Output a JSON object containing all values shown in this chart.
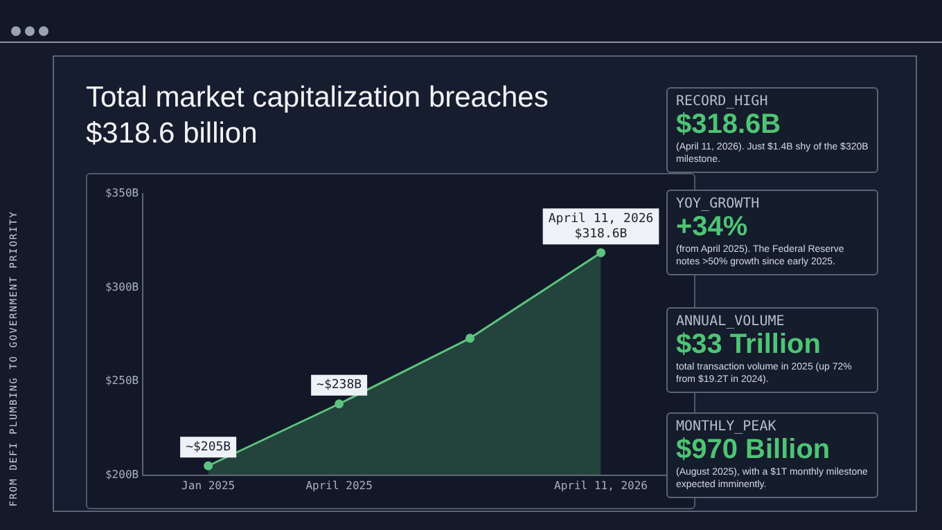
{
  "chart_data": [
    {
      "type": "area",
      "title": "Total market capitalization breaches $318.6 billion",
      "categories": [
        "Jan 2025",
        "April 2025",
        null,
        "April 11, 2026"
      ],
      "values": [
        205,
        238,
        273,
        318.6
      ],
      "value_labels": [
        "~$205B",
        "~$238B",
        null,
        "$318.6B"
      ],
      "color": "#5cc47e",
      "marker": "circle",
      "ylim": [
        200,
        350
      ],
      "yticks": [
        {
          "value": 200,
          "label": "$200B"
        },
        {
          "value": 250,
          "label": "$250B"
        },
        {
          "value": 300,
          "label": "$300B"
        },
        {
          "value": 350,
          "label": "$350B"
        }
      ],
      "annotations": [
        {
          "text": "April 11, 2026",
          "x": "April 11, 2026",
          "y": 318.6
        },
        "FROM DEFI PLUMBING TO GOVERNMENT PRIORITY"
      ]
    },
    {
      "type": "other",
      "title": "RECORD_HIGH",
      "annotations": [
        "$318.6B",
        "(April 11, 2026). Just $1.4B shy of the $320B milestone."
      ]
    },
    {
      "type": "other",
      "title": "YOY_GROWTH",
      "annotations": [
        "+34%",
        "(from April 2025). The Federal Reserve notes >50% growth since early 2025."
      ]
    },
    {
      "type": "other",
      "title": "ANNUAL_VOLUME",
      "annotations": [
        "$33 Trillion",
        "total transaction volume in 2025 (up 72% from $19.2T in 2024)."
      ]
    },
    {
      "type": "other",
      "title": "MONTHLY_PEAK",
      "annotations": [
        "$970 Billion",
        "(August 2025), with a $1T monthly milestone expected imminently."
      ]
    }
  ]
}
